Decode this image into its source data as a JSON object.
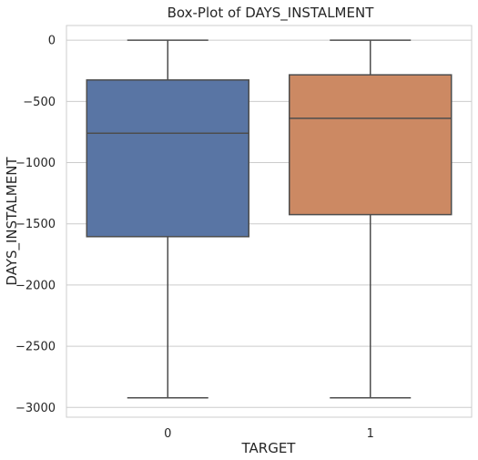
{
  "chart_data": {
    "type": "box",
    "title": "Box-Plot of DAYS_INSTALMENT",
    "xlabel": "TARGET",
    "ylabel": "DAYS_INSTALMENT",
    "categories": [
      "0",
      "1"
    ],
    "ylim": [
      -3080,
      120
    ],
    "yticks": [
      0,
      -500,
      -1000,
      -1500,
      -2000,
      -2500,
      -3000
    ],
    "ytick_labels": [
      "0",
      "−500",
      "−1000",
      "−1500",
      "−2000",
      "−2500",
      "−3000"
    ],
    "grid": true,
    "boxes": [
      {
        "category": "0",
        "whisker_low": -2922,
        "q1": -1605,
        "median": -760,
        "q3": -325,
        "whisker_high": 0,
        "color": "#5975a4"
      },
      {
        "category": "1",
        "whisker_low": -2922,
        "q1": -1425,
        "median": -638,
        "q3": -283,
        "whisker_high": 0,
        "color": "#cc8963"
      }
    ],
    "line_color": "#4d4d4d",
    "grid_color": "#cccccc"
  }
}
